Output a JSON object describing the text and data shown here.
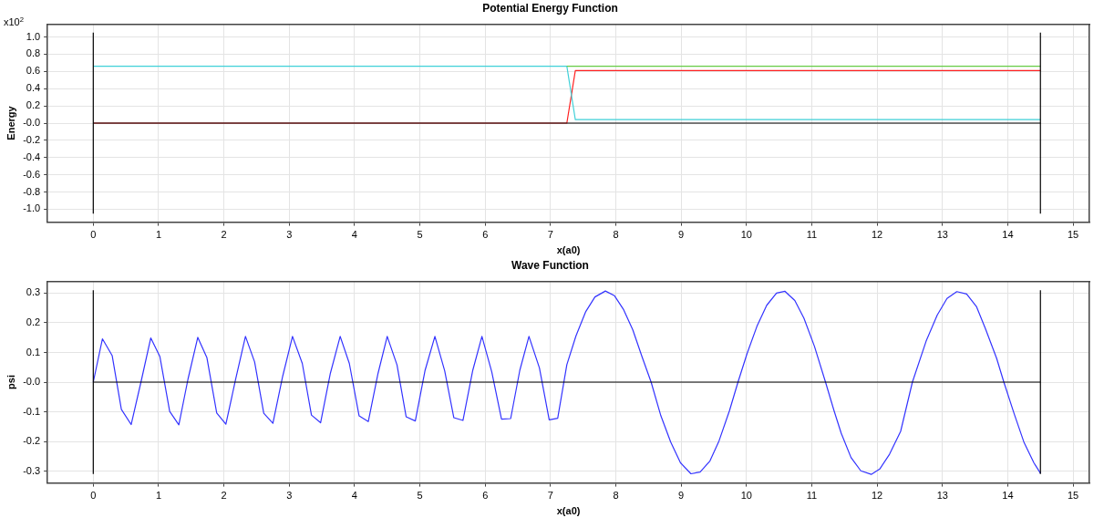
{
  "chart_data": [
    {
      "type": "line",
      "title": "Potential Energy Function",
      "xlabel": "x(a0)",
      "ylabel": "Energy",
      "annotations": [
        "x10$^{2}$"
      ],
      "xlim": [
        -0.7,
        15.25
      ],
      "ylim": [
        -1.15,
        1.15
      ],
      "xticks": [
        0,
        1,
        2,
        3,
        4,
        5,
        6,
        7,
        8,
        9,
        10,
        11,
        12,
        13,
        14,
        15
      ],
      "yticks": [
        {
          "value": -1,
          "label": "-1.0"
        },
        {
          "value": -0.8,
          "label": "-0.8"
        },
        {
          "value": -0.6,
          "label": "-0.6"
        },
        {
          "value": -0.4,
          "label": "-0.4"
        },
        {
          "value": -0.2,
          "label": "-0.2"
        },
        {
          "value": 0,
          "label": "-0.0"
        },
        {
          "value": 0.2,
          "label": "0.2"
        },
        {
          "value": 0.4,
          "label": "0.4"
        },
        {
          "value": 0.6,
          "label": "0.6"
        },
        {
          "value": 0.8,
          "label": "0.8"
        },
        {
          "value": 1,
          "label": "1.0"
        }
      ],
      "grid": true,
      "marker": "none",
      "line_style": "solid",
      "series": [
        {
          "color": "#000000",
          "x": [
            0,
            0
          ],
          "values": [
            -1.05,
            1.05
          ]
        },
        {
          "color": "#000000",
          "x": [
            14.5,
            14.5
          ],
          "values": [
            -1.05,
            1.05
          ]
        },
        {
          "color": "#000000",
          "x": [
            0,
            14.5
          ],
          "values": [
            0,
            0
          ]
        },
        {
          "color": "#66cc44",
          "x": [
            7.25,
            14.5
          ],
          "values": [
            0.66,
            0.66
          ]
        },
        {
          "color": "#3fd0d8",
          "x": [
            0,
            7.25,
            7.38,
            14.5
          ],
          "values": [
            0.66,
            0.66,
            0.04,
            0.04
          ]
        },
        {
          "color": "#ff2020",
          "x": [
            0,
            7.25,
            7.38,
            14.5
          ],
          "values": [
            0,
            0,
            0.61,
            0.61
          ]
        }
      ]
    },
    {
      "type": "line",
      "title": "Wave Function",
      "xlabel": "x(a0)",
      "ylabel": "psi",
      "xlim": [
        -0.7,
        15.25
      ],
      "ylim": [
        -0.34,
        0.34
      ],
      "xticks": [
        0,
        1,
        2,
        3,
        4,
        5,
        6,
        7,
        8,
        9,
        10,
        11,
        12,
        13,
        14,
        15
      ],
      "yticks": [
        {
          "value": -0.3,
          "label": "-0.3"
        },
        {
          "value": -0.2,
          "label": "-0.2"
        },
        {
          "value": -0.1,
          "label": "-0.1"
        },
        {
          "value": 0,
          "label": "-0.0"
        },
        {
          "value": 0.1,
          "label": "0.1"
        },
        {
          "value": 0.2,
          "label": "0.2"
        },
        {
          "value": 0.3,
          "label": "0.3"
        }
      ],
      "grid": true,
      "marker": "none",
      "line_style": "solid",
      "series": [
        {
          "color": "#000000",
          "x": [
            0,
            0
          ],
          "values": [
            -0.31,
            0.31
          ]
        },
        {
          "color": "#000000",
          "x": [
            14.5,
            14.5
          ],
          "values": [
            -0.31,
            0.31
          ]
        },
        {
          "color": "#000000",
          "x": [
            0,
            14.5
          ],
          "values": [
            0,
            0
          ]
        },
        {
          "color": "#3333ff",
          "x": [
            0,
            0.14,
            0.29,
            0.43,
            0.58,
            0.73,
            0.88,
            1.02,
            1.17,
            1.31,
            1.45,
            1.6,
            1.74,
            1.89,
            2.03,
            2.18,
            2.33,
            2.47,
            2.61,
            2.75,
            2.9,
            3.05,
            3.2,
            3.34,
            3.48,
            3.63,
            3.78,
            3.92,
            4.07,
            4.21,
            4.36,
            4.5,
            4.65,
            4.79,
            4.93,
            5.08,
            5.23,
            5.38,
            5.52,
            5.66,
            5.81,
            5.95,
            6.1,
            6.25,
            6.39,
            6.53,
            6.67,
            6.83,
            6.98,
            7.11,
            7.25,
            7.39,
            7.54,
            7.68,
            7.84,
            7.98,
            8.12,
            8.26,
            8.4,
            8.54,
            8.69,
            8.84,
            8.99,
            9.15,
            9.29,
            9.44,
            9.58,
            9.74,
            9.87,
            10.01,
            10.16,
            10.31,
            10.46,
            10.59,
            10.74,
            10.88,
            11.04,
            11.21,
            11.34,
            11.45,
            11.6,
            11.75,
            11.91,
            12.04,
            12.19,
            12.36,
            12.54,
            12.75,
            12.92,
            13.07,
            13.22,
            13.37,
            13.52,
            13.66,
            13.83,
            13.94,
            14.1,
            14.25,
            14.4,
            14.5
          ],
          "values": [
            0,
            0.146,
            0.089,
            -0.092,
            -0.143,
            0,
            0.149,
            0.086,
            -0.099,
            -0.144,
            0.01,
            0.151,
            0.082,
            -0.104,
            -0.142,
            0.01,
            0.154,
            0.068,
            -0.105,
            -0.139,
            0.02,
            0.154,
            0.063,
            -0.111,
            -0.137,
            0.03,
            0.154,
            0.063,
            -0.114,
            -0.133,
            0.03,
            0.154,
            0.058,
            -0.117,
            -0.131,
            0.04,
            0.154,
            0.038,
            -0.12,
            -0.129,
            0.04,
            0.154,
            0.035,
            -0.125,
            -0.123,
            0.04,
            0.154,
            0.048,
            -0.127,
            -0.122,
            0.059,
            0.156,
            0.238,
            0.287,
            0.307,
            0.291,
            0.244,
            0.176,
            0.086,
            0,
            -0.114,
            -0.202,
            -0.272,
            -0.309,
            -0.303,
            -0.266,
            -0.198,
            -0.096,
            0,
            0.097,
            0.188,
            0.259,
            0.3,
            0.306,
            0.275,
            0.215,
            0.121,
            0,
            -0.096,
            -0.172,
            -0.254,
            -0.299,
            -0.311,
            -0.293,
            -0.243,
            -0.166,
            0,
            0.138,
            0.226,
            0.282,
            0.305,
            0.297,
            0.255,
            0.179,
            0.08,
            0,
            -0.108,
            -0.204,
            -0.272,
            -0.307
          ]
        }
      ]
    }
  ]
}
